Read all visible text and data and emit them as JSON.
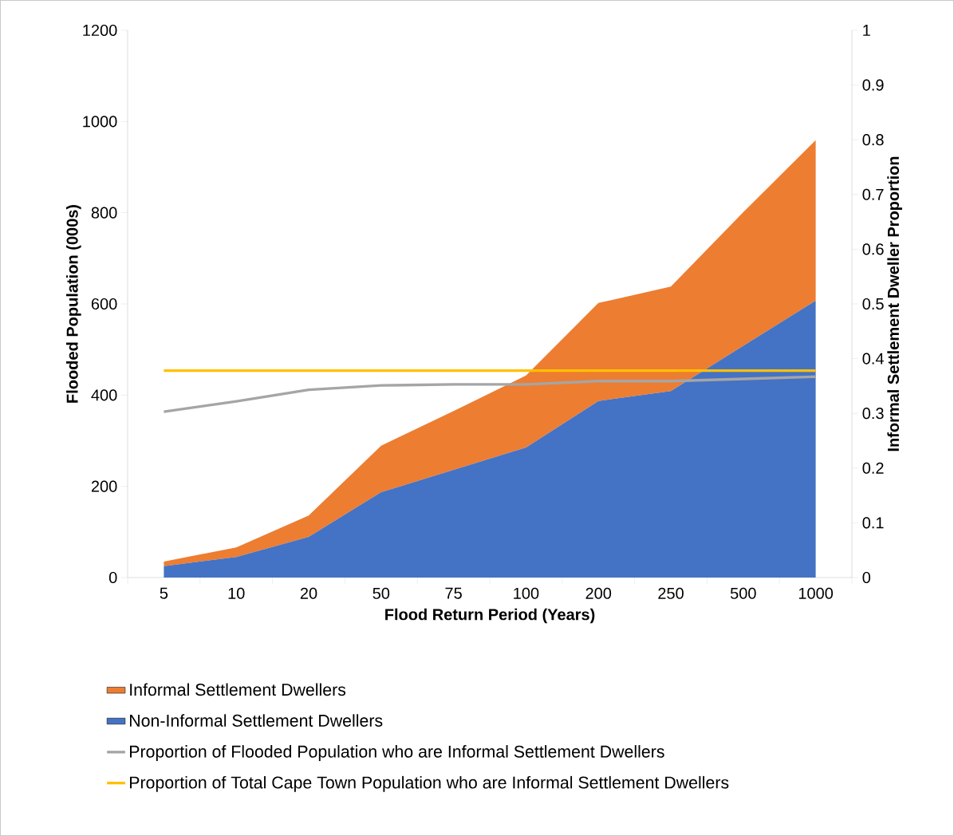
{
  "chart_data": {
    "type": "area",
    "stacked": true,
    "xlabel": "Flood Return Period (Years)",
    "ylabel": "Flooded Population (000s)",
    "y2label": "Informal Settlement Dweller Proportion",
    "categories": [
      "5",
      "10",
      "20",
      "50",
      "75",
      "100",
      "200",
      "250",
      "500",
      "1000"
    ],
    "ylim": [
      0,
      1200
    ],
    "yticks": [
      0,
      200,
      400,
      600,
      800,
      1000,
      1200
    ],
    "y2lim": [
      0,
      1
    ],
    "y2ticks": [
      0,
      0.1,
      0.2,
      0.3,
      0.4,
      0.5,
      0.6,
      0.7,
      0.8,
      0.9,
      1
    ],
    "legend": "bottom",
    "grid": false,
    "series": [
      {
        "name": "Non-Informal Settlement Dwellers",
        "color": "#4472c4",
        "values": [
          25,
          45,
          89,
          187,
          236,
          285,
          387,
          409,
          508,
          607
        ]
      },
      {
        "name": "Informal Settlement Dwellers",
        "color": "#ed7d31",
        "values": [
          10,
          21,
          47,
          102,
          129,
          158,
          215,
          229,
          293,
          352
        ]
      },
      {
        "name": "Proportion of Flooded Population who are Informal Settlement Dwellers",
        "type": "line",
        "axis": "y2",
        "color": "#a5a5a5",
        "values": [
          0.303,
          0.322,
          0.343,
          0.351,
          0.353,
          0.353,
          0.359,
          0.359,
          0.363,
          0.367
        ]
      },
      {
        "name": "Proportion of Total Cape Town Population who are Informal Settlement Dwellers",
        "type": "line",
        "axis": "y2",
        "color": "#ffc000",
        "values": [
          0.378,
          0.378,
          0.378,
          0.378,
          0.378,
          0.378,
          0.378,
          0.378,
          0.378,
          0.378
        ]
      }
    ]
  }
}
